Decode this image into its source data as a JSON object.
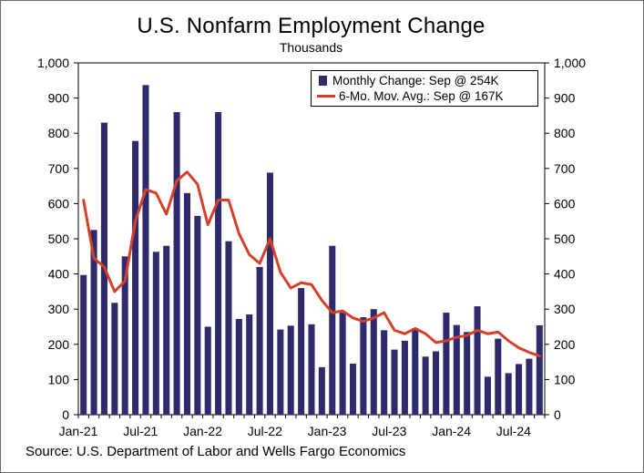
{
  "chart_data": {
    "type": "bar",
    "title": "U.S. Nonfarm Employment Change",
    "subtitle": "Thousands",
    "source": "Source: U.S. Department of Labor and Wells Fargo Economics",
    "ylim": [
      0,
      1000
    ],
    "yticks": [
      "0",
      "100",
      "200",
      "300",
      "400",
      "500",
      "600",
      "700",
      "800",
      "900",
      "1,000"
    ],
    "xtick_labels": [
      {
        "index": 0,
        "label": "Jan-21"
      },
      {
        "index": 6,
        "label": "Jul-21"
      },
      {
        "index": 12,
        "label": "Jan-22"
      },
      {
        "index": 18,
        "label": "Jul-22"
      },
      {
        "index": 24,
        "label": "Jan-23"
      },
      {
        "index": 30,
        "label": "Jul-23"
      },
      {
        "index": 36,
        "label": "Jan-24"
      },
      {
        "index": 42,
        "label": "Jul-24"
      }
    ],
    "categories": [
      "Jan-21",
      "Feb-21",
      "Mar-21",
      "Apr-21",
      "May-21",
      "Jun-21",
      "Jul-21",
      "Aug-21",
      "Sep-21",
      "Oct-21",
      "Nov-21",
      "Dec-21",
      "Jan-22",
      "Feb-22",
      "Mar-22",
      "Apr-22",
      "May-22",
      "Jun-22",
      "Jul-22",
      "Aug-22",
      "Sep-22",
      "Oct-22",
      "Nov-22",
      "Dec-22",
      "Jan-23",
      "Feb-23",
      "Mar-23",
      "Apr-23",
      "May-23",
      "Jun-23",
      "Jul-23",
      "Aug-23",
      "Sep-23",
      "Oct-23",
      "Nov-23",
      "Dec-23",
      "Jan-24",
      "Feb-24",
      "Mar-24",
      "Apr-24",
      "May-24",
      "Jun-24",
      "Jul-24",
      "Aug-24",
      "Sep-24"
    ],
    "series": [
      {
        "name": "Monthly Change: Sep @ 254K",
        "kind": "bar",
        "color": "#2e2a6b",
        "values": [
          397,
          525,
          830,
          318,
          450,
          778,
          937,
          463,
          480,
          860,
          630,
          565,
          250,
          860,
          493,
          272,
          285,
          420,
          688,
          242,
          253,
          360,
          257,
          135,
          480,
          290,
          145,
          277,
          300,
          240,
          185,
          210,
          246,
          165,
          180,
          290,
          255,
          235,
          308,
          108,
          216,
          118,
          144,
          159,
          254
        ]
      },
      {
        "name": "6-Mo. Mov. Avg.: Sep @ 167K",
        "kind": "line",
        "color": "#d5402b",
        "values": [
          610,
          445,
          420,
          350,
          380,
          550,
          640,
          630,
          570,
          665,
          690,
          655,
          540,
          610,
          610,
          515,
          455,
          430,
          500,
          405,
          360,
          375,
          370,
          325,
          290,
          295,
          275,
          265,
          275,
          290,
          240,
          230,
          245,
          230,
          205,
          210,
          220,
          225,
          240,
          230,
          235,
          210,
          190,
          177,
          167
        ]
      }
    ]
  }
}
